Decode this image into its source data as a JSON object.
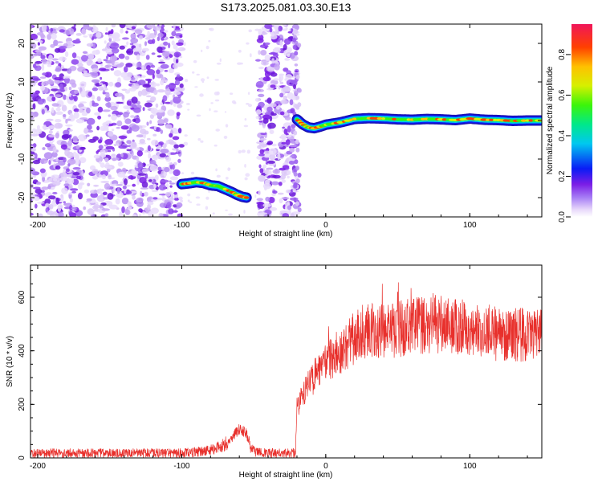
{
  "title": "S173.2025.081.03.30.E13",
  "chart_data": [
    {
      "type": "heatmap",
      "xlabel": "Height of straight line (km)",
      "ylabel": "Frequency (Hz)",
      "xlim": [
        -205,
        150
      ],
      "ylim": [
        -25,
        25
      ],
      "xticks": [
        "-200",
        "-100",
        "0",
        "100"
      ],
      "xtick_values": [
        -200,
        -100,
        0,
        100
      ],
      "yticks": [
        "-20",
        "-10",
        "0",
        "10",
        "20"
      ],
      "ytick_values": [
        -20,
        -10,
        0,
        10,
        20
      ],
      "colorbar": {
        "label": "Normalized spectral amplitude",
        "range": [
          0,
          0.95
        ],
        "ticks": [
          "0.0",
          "0.2",
          "0.4",
          "0.6",
          "0.8"
        ],
        "tick_values": [
          0,
          0.2,
          0.4,
          0.6,
          0.8
        ],
        "colormap": "rainbow",
        "colors": [
          "#ffffff",
          "#e6d6fa",
          "#a77ef5",
          "#7a1de6",
          "#0a1cf5",
          "#00c8f0",
          "#00e88a",
          "#3bf50a",
          "#d6f000",
          "#ffc000",
          "#ff4000",
          "#f0165a"
        ]
      },
      "noise_regions_x": [
        [
          -205,
          -100
        ],
        [
          -47,
          -20
        ]
      ],
      "signal_tracks": [
        {
          "x": [
            -100,
            -95,
            -90,
            -85,
            -80,
            -75,
            -70,
            -65,
            -62,
            -58,
            -55
          ],
          "y": [
            -16.5,
            -16.3,
            -16,
            -16.2,
            -16.8,
            -17,
            -17.8,
            -18.6,
            -19.2,
            -19.8,
            -20
          ]
        },
        {
          "x": [
            -20,
            -16,
            -12,
            -8,
            -4,
            0,
            10,
            20,
            30,
            40,
            50,
            60,
            70,
            80,
            90,
            100,
            110,
            120,
            130,
            140,
            150
          ],
          "y": [
            0.3,
            -1,
            -1.8,
            -2,
            -1.6,
            -1.1,
            -0.5,
            0.4,
            0.6,
            0.5,
            0.3,
            0.2,
            0.4,
            0.3,
            0.1,
            0.5,
            0.2,
            0.1,
            -0.1,
            0,
            0
          ]
        }
      ]
    },
    {
      "type": "line",
      "xlabel": "Height of straight line (km)",
      "ylabel": "SNR (10 * v/v)",
      "xlim": [
        -205,
        150
      ],
      "ylim": [
        0,
        720
      ],
      "xticks": [
        "-200",
        "-100",
        "0",
        "100"
      ],
      "xtick_values": [
        -200,
        -100,
        0,
        100
      ],
      "yticks": [
        "0",
        "200",
        "400",
        "600"
      ],
      "ytick_values": [
        0,
        200,
        400,
        600
      ],
      "color": "#e8302c",
      "series": [
        {
          "x": [
            -205,
            -150,
            -100,
            -90,
            -80,
            -70,
            -65,
            -60,
            -55,
            -52,
            -48,
            -40,
            -30,
            -21,
            -20,
            -17,
            -12,
            -6,
            0,
            10,
            15,
            20,
            25,
            30,
            40,
            50,
            60,
            70,
            80,
            90,
            100,
            110,
            120,
            130,
            140,
            150
          ],
          "y": [
            18,
            18,
            18,
            22,
            28,
            50,
            75,
            110,
            90,
            35,
            20,
            18,
            18,
            18,
            190,
            220,
            270,
            320,
            360,
            380,
            420,
            450,
            470,
            480,
            470,
            480,
            490,
            500,
            500,
            490,
            490,
            480,
            460,
            460,
            460,
            470
          ]
        }
      ]
    }
  ]
}
